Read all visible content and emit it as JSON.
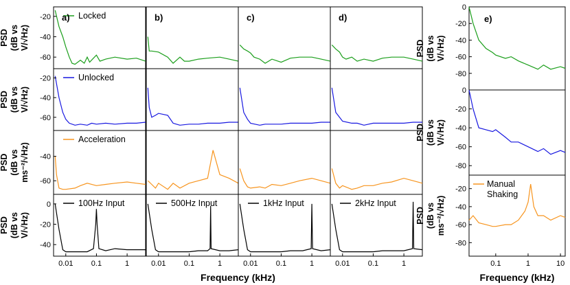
{
  "chart_data": {
    "type": "line",
    "panel_labels": [
      "a)",
      "b)",
      "c)",
      "d)",
      "e)"
    ],
    "xlabel": "Frequency (kHz)",
    "x_scale": "log",
    "grid_xlim": [
      0.004,
      4
    ],
    "e_xlim": [
      0.015,
      14
    ],
    "x_ticks_grid": [
      "0.01",
      "0.1",
      "1"
    ],
    "x_ticks_e": [
      "0.1",
      "1",
      "10"
    ],
    "row_ylabels": [
      [
        "PSD",
        "(dB vs",
        "V/√Hz)"
      ],
      [
        "PSD",
        "(dB vs",
        "V/√Hz)"
      ],
      [
        "PSD",
        "(dB vs",
        "ms⁻²/√Hz)"
      ],
      [
        "PSD",
        "(dB vs",
        "V/√Hz)"
      ]
    ],
    "e_ylabels": [
      [
        "PSD",
        "(dB vs",
        "V/√Hz)"
      ],
      [
        "PSD",
        "(dB vs",
        "V/√Hz)"
      ],
      [
        "PSD",
        "(dB vs",
        "ms⁻²/√Hz)"
      ]
    ],
    "grid_rows": [
      {
        "legend": "Locked",
        "color": "#1a9e1a",
        "ylim": [
          -70,
          -12
        ],
        "yticks": [
          "-20",
          "-40",
          "-60"
        ],
        "series": [
          {
            "panel": "a)",
            "x": [
              0.0045,
              0.006,
              0.008,
              0.01,
              0.013,
              0.016,
              0.02,
              0.03,
              0.04,
              0.05,
              0.06,
              0.08,
              0.1,
              0.13,
              0.2,
              0.4,
              1,
              2,
              4
            ],
            "y": [
              -14,
              -30,
              -40,
              -50,
              -60,
              -66,
              -67,
              -63,
              -66,
              -60,
              -65,
              -61,
              -58,
              -64,
              -62,
              -60,
              -62,
              -61,
              -64
            ]
          },
          {
            "panel": "b)",
            "x": [
              0.0045,
              0.005,
              0.006,
              0.01,
              0.02,
              0.03,
              0.05,
              0.07,
              0.1,
              0.2,
              0.4,
              1,
              2,
              4
            ],
            "y": [
              -40,
              -54,
              -54,
              -55,
              -60,
              -66,
              -60,
              -64,
              -64,
              -62,
              -61,
              -60,
              -62,
              -64
            ]
          },
          {
            "panel": "c)",
            "x": [
              0.0045,
              0.006,
              0.008,
              0.01,
              0.013,
              0.02,
              0.03,
              0.05,
              0.1,
              0.2,
              0.4,
              1,
              2,
              4
            ],
            "y": [
              -48,
              -52,
              -54,
              -56,
              -60,
              -62,
              -66,
              -62,
              -65,
              -61,
              -60,
              -60,
              -62,
              -64
            ]
          },
          {
            "panel": "d)",
            "x": [
              0.0045,
              0.006,
              0.008,
              0.01,
              0.013,
              0.02,
              0.03,
              0.05,
              0.1,
              0.2,
              0.4,
              1,
              2,
              4
            ],
            "y": [
              -48,
              -52,
              -55,
              -60,
              -62,
              -60,
              -64,
              -62,
              -64,
              -61,
              -60,
              -60,
              -62,
              -64
            ]
          }
        ]
      },
      {
        "legend": "Unlocked",
        "color": "#1717e0",
        "ylim": [
          -72,
          -12
        ],
        "yticks": [
          "-20",
          "-40",
          "-60"
        ],
        "series": [
          {
            "panel": "a)",
            "x": [
              0.0045,
              0.006,
              0.008,
              0.01,
              0.013,
              0.02,
              0.03,
              0.05,
              0.07,
              0.1,
              0.2,
              0.4,
              1,
              2,
              4
            ],
            "y": [
              -18,
              -40,
              -55,
              -62,
              -66,
              -68,
              -67,
              -68,
              -66,
              -67,
              -66,
              -67,
              -66,
              -66,
              -65
            ]
          },
          {
            "panel": "b)",
            "x": [
              0.0045,
              0.005,
              0.006,
              0.008,
              0.01,
              0.02,
              0.03,
              0.05,
              0.1,
              0.2,
              0.4,
              1,
              2,
              4
            ],
            "y": [
              -30,
              -50,
              -60,
              -58,
              -56,
              -58,
              -66,
              -68,
              -67,
              -67,
              -66,
              -66,
              -65,
              -65
            ]
          },
          {
            "panel": "c)",
            "x": [
              0.0045,
              0.006,
              0.008,
              0.01,
              0.02,
              0.03,
              0.05,
              0.1,
              0.2,
              0.4,
              1,
              2,
              4
            ],
            "y": [
              -30,
              -55,
              -62,
              -66,
              -68,
              -67,
              -67,
              -67,
              -66,
              -66,
              -66,
              -65,
              -65
            ]
          },
          {
            "panel": "d)",
            "x": [
              0.0045,
              0.006,
              0.008,
              0.01,
              0.02,
              0.03,
              0.05,
              0.1,
              0.2,
              0.4,
              1,
              2,
              4
            ],
            "y": [
              -30,
              -55,
              -60,
              -64,
              -66,
              -66,
              -68,
              -66,
              -66,
              -66,
              -66,
              -65,
              -65
            ]
          }
        ]
      },
      {
        "legend": "Acceleration",
        "color": "#f7941d",
        "ylim": [
          -70,
          -20
        ],
        "yticks": [
          "-40",
          "-60"
        ],
        "series": [
          {
            "panel": "a)",
            "x": [
              0.0045,
              0.005,
              0.006,
              0.008,
              0.01,
              0.02,
              0.03,
              0.05,
              0.1,
              0.2,
              0.4,
              1,
              2,
              4
            ],
            "y": [
              -40,
              -55,
              -66,
              -67,
              -67,
              -66,
              -64,
              -62,
              -64,
              -63,
              -62,
              -61,
              -62,
              -63
            ]
          },
          {
            "panel": "b)",
            "x": [
              0.0045,
              0.006,
              0.008,
              0.01,
              0.02,
              0.03,
              0.05,
              0.1,
              0.2,
              0.4,
              0.6,
              1,
              2,
              4
            ],
            "y": [
              -60,
              -63,
              -66,
              -62,
              -67,
              -62,
              -66,
              -62,
              -60,
              -58,
              -35,
              -55,
              -58,
              -62
            ]
          },
          {
            "panel": "c)",
            "x": [
              0.0045,
              0.006,
              0.008,
              0.01,
              0.02,
              0.03,
              0.05,
              0.1,
              0.2,
              0.4,
              1,
              2,
              4
            ],
            "y": [
              -50,
              -60,
              -65,
              -66,
              -65,
              -66,
              -63,
              -64,
              -62,
              -60,
              -58,
              -60,
              -62
            ]
          },
          {
            "panel": "d)",
            "x": [
              0.0045,
              0.006,
              0.008,
              0.01,
              0.02,
              0.03,
              0.05,
              0.1,
              0.2,
              0.4,
              1,
              2,
              4
            ],
            "y": [
              -50,
              -62,
              -66,
              -64,
              -67,
              -66,
              -64,
              -64,
              -62,
              -61,
              -58,
              -60,
              -62
            ]
          }
        ]
      },
      {
        "color": "#000000",
        "ylim": [
          -50,
          8
        ],
        "yticks": [
          "0",
          "-20",
          "-40"
        ],
        "series": [
          {
            "panel": "a)",
            "legend": "100Hz Input",
            "x": [
              0.0045,
              0.006,
              0.008,
              0.01,
              0.02,
              0.05,
              0.08,
              0.095,
              0.1,
              0.105,
              0.12,
              0.2,
              0.4,
              1,
              2,
              4
            ],
            "y": [
              0,
              -25,
              -45,
              -47,
              -47,
              -47,
              -44,
              -20,
              -5,
              -20,
              -44,
              -46,
              -44,
              -45,
              -45,
              -45
            ]
          },
          {
            "panel": "b)",
            "legend": "500Hz Input",
            "x": [
              0.0045,
              0.006,
              0.008,
              0.01,
              0.02,
              0.05,
              0.1,
              0.2,
              0.4,
              0.48,
              0.5,
              0.52,
              1,
              2,
              4
            ],
            "y": [
              0,
              -25,
              -45,
              -47,
              -47,
              -47,
              -47,
              -46,
              -46,
              -44,
              -2,
              -44,
              -46,
              -46,
              -45
            ]
          },
          {
            "panel": "c)",
            "legend": "1kHz Input",
            "x": [
              0.0045,
              0.006,
              0.008,
              0.01,
              0.02,
              0.05,
              0.1,
              0.2,
              0.5,
              0.95,
              1,
              1.05,
              2,
              4
            ],
            "y": [
              0,
              -25,
              -45,
              -47,
              -47,
              -47,
              -47,
              -46,
              -46,
              -44,
              0,
              -44,
              -46,
              -45
            ]
          },
          {
            "panel": "d)",
            "legend": "2kHz Input",
            "x": [
              0.0045,
              0.006,
              0.008,
              0.01,
              0.02,
              0.05,
              0.1,
              0.2,
              0.5,
              1,
              1.9,
              2,
              2.1,
              4
            ],
            "y": [
              0,
              -25,
              -45,
              -47,
              -47,
              -47,
              -47,
              -46,
              -46,
              -46,
              -44,
              2,
              -44,
              -45
            ]
          }
        ]
      }
    ],
    "e_rows": [
      {
        "color": "#1a9e1a",
        "ylim": [
          -100,
          0
        ],
        "yticks": [
          "0",
          "-20",
          "-40",
          "-60",
          "-80"
        ],
        "x": [
          0.015,
          0.02,
          0.03,
          0.05,
          0.08,
          0.1,
          0.2,
          0.3,
          0.5,
          1,
          2,
          3,
          5,
          10,
          14
        ],
        "y": [
          0,
          -20,
          -40,
          -50,
          -55,
          -58,
          -62,
          -60,
          -65,
          -70,
          -75,
          -70,
          -75,
          -72,
          -74
        ]
      },
      {
        "color": "#1717e0",
        "ylim": [
          -90,
          0
        ],
        "yticks": [
          "0",
          "-20",
          "-40",
          "-60",
          "-80"
        ],
        "x": [
          0.015,
          0.02,
          0.03,
          0.05,
          0.08,
          0.1,
          0.2,
          0.3,
          0.5,
          1,
          2,
          3,
          5,
          10,
          14
        ],
        "y": [
          0,
          -20,
          -40,
          -42,
          -44,
          -42,
          -50,
          -55,
          -55,
          -60,
          -65,
          -62,
          -68,
          -64,
          -66
        ]
      },
      {
        "legend": "Manual Shaking",
        "color": "#f7941d",
        "ylim": [
          -95,
          -5
        ],
        "yticks": [
          "-20",
          "-40",
          "-60",
          "-80"
        ],
        "x": [
          0.015,
          0.02,
          0.03,
          0.05,
          0.08,
          0.1,
          0.2,
          0.3,
          0.5,
          0.8,
          1,
          1.2,
          1.5,
          2,
          3,
          5,
          10,
          14
        ],
        "y": [
          -55,
          -50,
          -58,
          -60,
          -62,
          -62,
          -60,
          -60,
          -55,
          -45,
          -35,
          -15,
          -40,
          -50,
          -50,
          -55,
          -50,
          -52
        ]
      }
    ]
  }
}
